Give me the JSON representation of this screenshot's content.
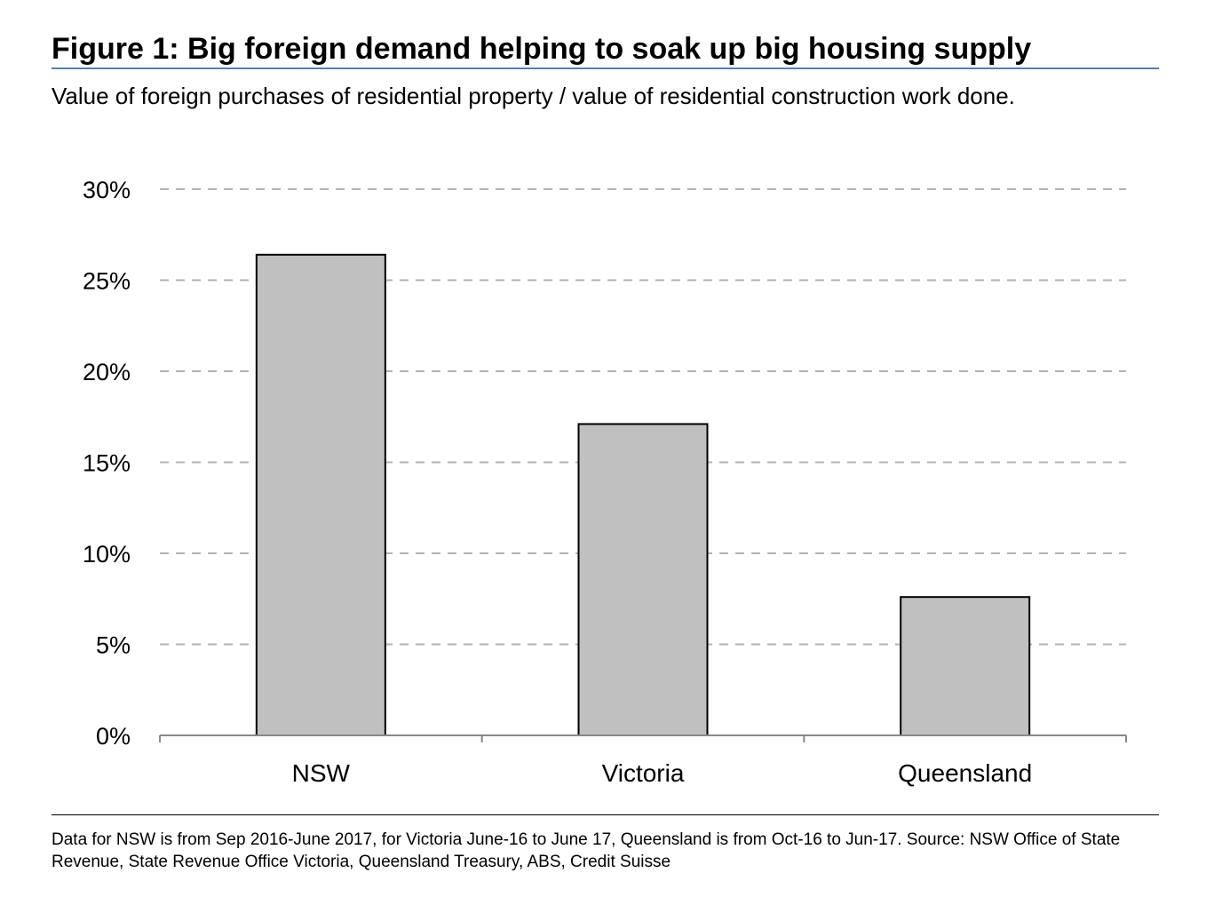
{
  "title": "Figure 1: Big foreign demand helping to soak up big housing supply",
  "subtitle": "Value of foreign purchases of residential property / value of residential construction work done.",
  "footnote": "Data for NSW is from Sep 2016-June 2017, for Victoria June-16 to June 17, Queensland is from Oct-16 to Jun-17. Source: NSW Office of State Revenue, State Revenue Office Victoria, Queensland Treasury, ABS, Credit Suisse",
  "colors": {
    "bar_fill": "#c0c0c0",
    "bar_stroke": "#000000",
    "grid": "#b3b3b3",
    "title_rule": "#5b7fa6"
  },
  "chart_data": {
    "type": "bar",
    "title": "Figure 1: Big foreign demand helping to soak up big housing supply",
    "xlabel": "",
    "ylabel": "",
    "categories": [
      "NSW",
      "Victoria",
      "Queensland"
    ],
    "values": [
      26.4,
      17.1,
      7.6
    ],
    "ylim": [
      0,
      30
    ],
    "yticks": [
      0,
      5,
      10,
      15,
      20,
      25,
      30
    ],
    "ytick_labels": [
      "0%",
      "5%",
      "10%",
      "15%",
      "20%",
      "25%",
      "30%"
    ],
    "grid": true,
    "legend": "none"
  }
}
